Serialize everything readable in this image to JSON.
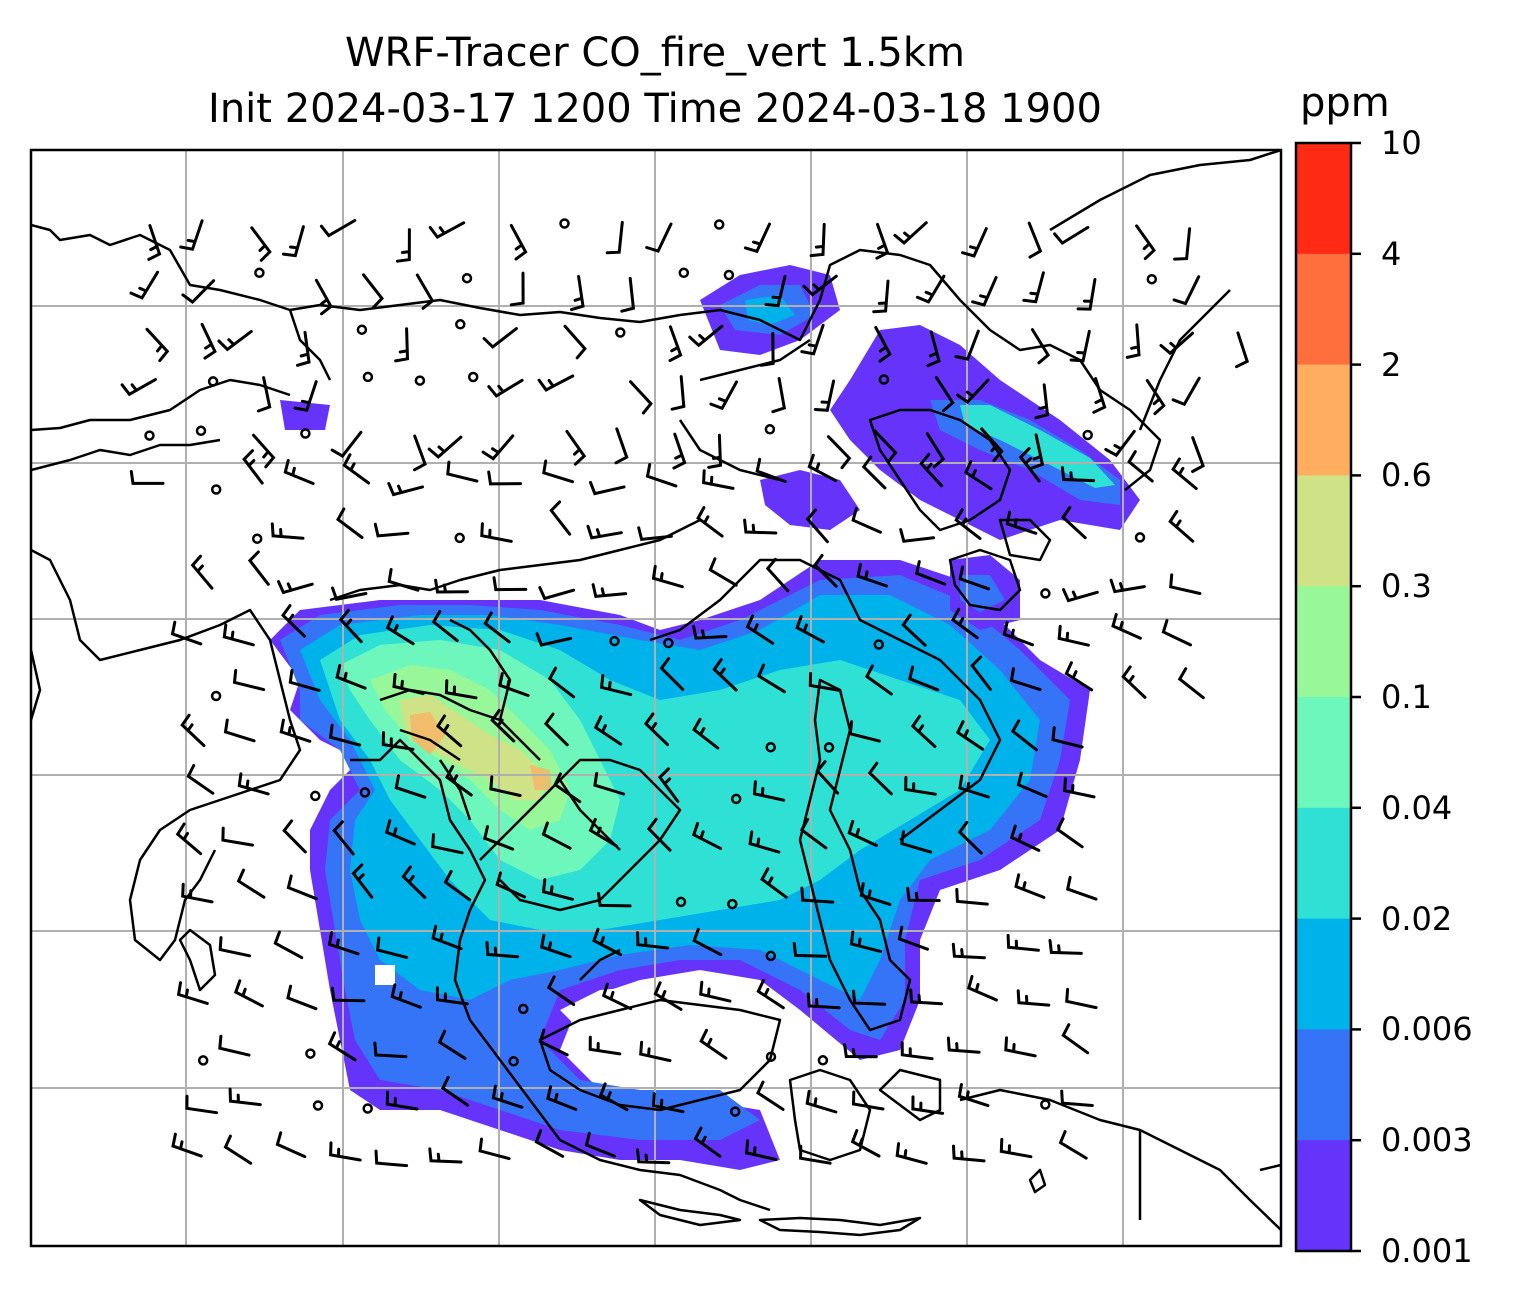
{
  "title": {
    "line1": "WRF-Tracer CO_fire_vert 1.5km",
    "line2": "Init 2024-03-17 1200 Time 2024-03-18 1900"
  },
  "colorbar": {
    "label": "ppm",
    "ticks": [
      "10",
      "4",
      "2",
      "0.6",
      "0.3",
      "0.1",
      "0.04",
      "0.02",
      "0.006",
      "0.003",
      "0.001"
    ],
    "colors": [
      "#ff2a14",
      "#ff6f3d",
      "#ffad5f",
      "#d0e286",
      "#98f799",
      "#6df7bd",
      "#2fe0d5",
      "#00b2ea",
      "#3574f6",
      "#6633fb"
    ]
  },
  "map": {
    "features": [
      "coastlines",
      "country-borders",
      "gridlines",
      "wind-barbs",
      "co-tracer-concentration"
    ]
  }
}
